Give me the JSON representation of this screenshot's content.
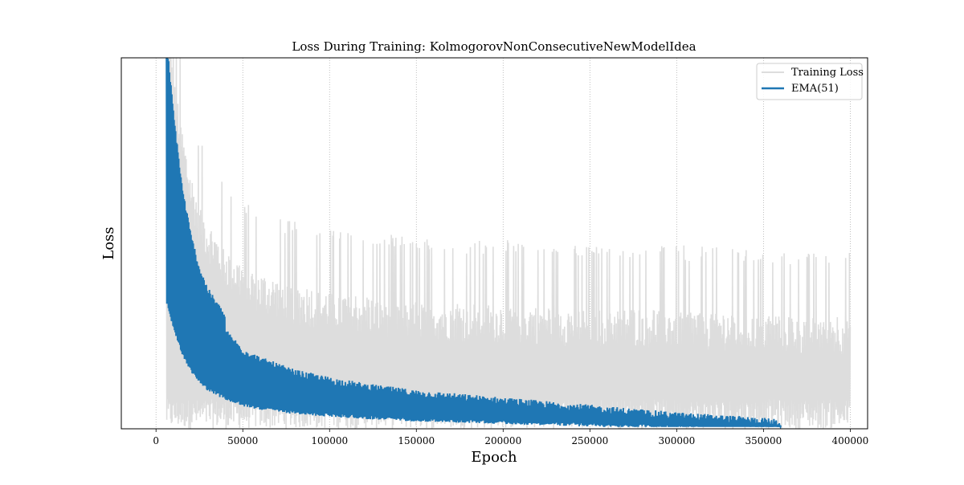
{
  "chart_data": {
    "type": "line",
    "title": "Loss During Training: KolmogorovNonConsecutiveNewModelIdea",
    "xlabel": "Epoch",
    "ylabel": "Loss",
    "xlim": [
      -20000,
      410000
    ],
    "ylim": [
      0,
      1
    ],
    "x_ticks": [
      0,
      50000,
      100000,
      150000,
      200000,
      250000,
      300000,
      350000,
      400000
    ],
    "y_ticks_shown": false,
    "grid": "x-only, dotted",
    "legend_position": "top-right",
    "series": [
      {
        "name": "Training Loss",
        "color": "#dddddd",
        "x_range": [
          0,
          400000
        ],
        "x": [
          6000,
          10000,
          15000,
          20000,
          25000,
          30000,
          40000,
          50000,
          60000,
          80000,
          100000,
          125000,
          150000,
          175000,
          200000,
          225000,
          250000,
          275000,
          300000,
          325000,
          350000,
          375000,
          400000
        ],
        "y": [
          1.05,
          0.86,
          0.7,
          0.58,
          0.5,
          0.45,
          0.38,
          0.34,
          0.31,
          0.28,
          0.265,
          0.25,
          0.24,
          0.235,
          0.23,
          0.225,
          0.22,
          0.22,
          0.215,
          0.21,
          0.205,
          0.2,
          0.2
        ]
      },
      {
        "name": "EMA(51)",
        "color": "#1f77b4",
        "x_range": [
          6000,
          360000
        ],
        "x": [
          6000,
          10000,
          15000,
          20000,
          25000,
          30000,
          40000,
          50000,
          60000,
          80000,
          100000,
          125000,
          150000,
          175000,
          200000,
          225000,
          250000,
          275000,
          300000,
          325000,
          350000,
          360000
        ],
        "y": [
          1.0,
          0.8,
          0.6,
          0.47,
          0.38,
          0.32,
          0.25,
          0.2,
          0.175,
          0.14,
          0.12,
          0.1,
          0.085,
          0.075,
          0.065,
          0.055,
          0.045,
          0.035,
          0.025,
          0.018,
          0.01,
          0.005
        ]
      }
    ]
  }
}
